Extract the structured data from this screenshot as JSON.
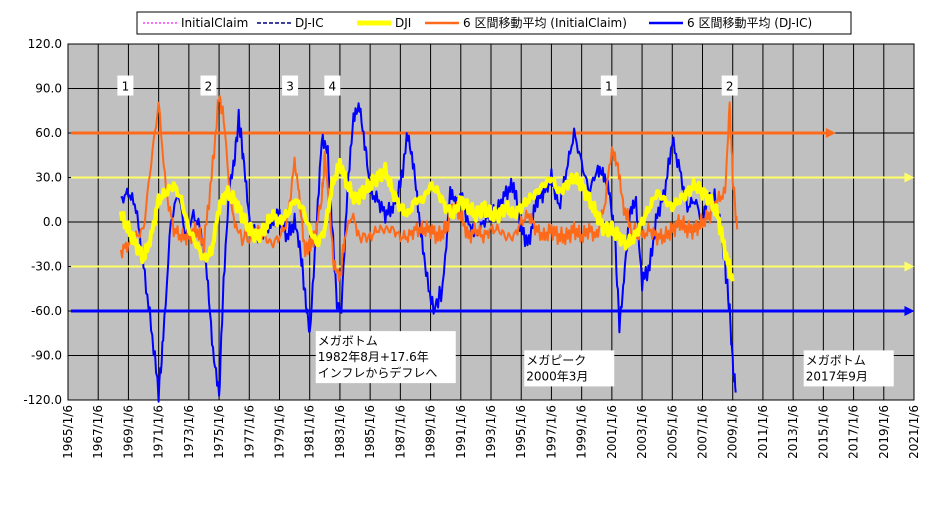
{
  "chart_data": {
    "type": "line",
    "ylim": [
      -120,
      120
    ],
    "y_ticks": [
      "120.0",
      "90.0",
      "60.0",
      "30.0",
      "0.0",
      "-30.0",
      "-60.0",
      "-90.0",
      "-120.0"
    ],
    "x_range": [
      1965,
      2021
    ],
    "x_ticks": [
      "1965/1/6",
      "1967/1/6",
      "1969/1/6",
      "1971/1/6",
      "1973/1/6",
      "1975/1/6",
      "1977/1/6",
      "1979/1/6",
      "1981/1/6",
      "1983/1/6",
      "1985/1/6",
      "1987/1/6",
      "1989/1/6",
      "1991/1/6",
      "1993/1/6",
      "1995/1/6",
      "1997/1/6",
      "1999/1/6",
      "2001/1/6",
      "2003/1/6",
      "2005/1/6",
      "2007/1/6",
      "2009/1/6",
      "2011/1/6",
      "2013/1/6",
      "2015/1/6",
      "2017/1/6",
      "2019/1/6",
      "2021/1/6"
    ],
    "legend": [
      {
        "name": "InitialClaim",
        "color": "#ff40ff",
        "style": "dotted"
      },
      {
        "name": "DJ-IC",
        "color": "#000080",
        "style": "dashed"
      },
      {
        "name": "DJI",
        "color": "#ffff00",
        "style": "thick"
      },
      {
        "name": "6 区間移動平均 (InitialClaim)",
        "color": "#ff6a1a",
        "style": "solid"
      },
      {
        "name": "6 区間移動平均 (DJ-IC)",
        "color": "#0000ff",
        "style": "solid"
      }
    ],
    "series": [
      {
        "name": "6 区間移動平均 (DJ-IC)",
        "color": "#0000ff",
        "x": [
          1968.5,
          1969,
          1969.5,
          1970,
          1970.5,
          1971,
          1971.3,
          1971.8,
          1972.3,
          1972.8,
          1973.3,
          1973.8,
          1974.2,
          1974.6,
          1975,
          1975.3,
          1975.7,
          1976,
          1976.3,
          1976.6,
          1977,
          1977.5,
          1978,
          1978.5,
          1979,
          1979.5,
          1980,
          1980.4,
          1980.7,
          1981,
          1981.4,
          1981.8,
          1982.2,
          1982.5,
          1982.8,
          1983.1,
          1983.5,
          1983.9,
          1984.3,
          1984.7,
          1985,
          1985.5,
          1986,
          1986.5,
          1987,
          1987.5,
          1987.9,
          1988.3,
          1988.7,
          1989.2,
          1989.8,
          1990.3,
          1990.7,
          1991.1,
          1991.6,
          1992,
          1992.5,
          1993,
          1993.5,
          1994,
          1994.5,
          1995,
          1995.5,
          1996,
          1996.5,
          1997,
          1997.5,
          1998,
          1998.5,
          1999,
          1999.5,
          2000,
          2000.4,
          2000.8,
          2001.2,
          2001.5,
          2001.8,
          2002.2,
          2002.6,
          2003,
          2003.5,
          2004,
          2004.5,
          2005,
          2005.5,
          2006,
          2006.5,
          2007,
          2007.4,
          2007.8,
          2008.2,
          2008.5,
          2008.8,
          2009,
          2009.2
        ],
        "y": [
          15,
          20,
          10,
          -30,
          -70,
          -115,
          -80,
          0,
          20,
          -10,
          5,
          -5,
          -35,
          -90,
          -118,
          -40,
          25,
          40,
          70,
          45,
          0,
          -10,
          -5,
          0,
          5,
          -10,
          0,
          -20,
          -50,
          -75,
          -10,
          55,
          45,
          -5,
          -55,
          -60,
          20,
          70,
          80,
          50,
          20,
          15,
          5,
          10,
          25,
          60,
          35,
          -5,
          -35,
          -60,
          -45,
          20,
          10,
          15,
          -5,
          -10,
          0,
          5,
          10,
          20,
          25,
          -5,
          -15,
          15,
          20,
          30,
          10,
          35,
          60,
          40,
          20,
          35,
          35,
          25,
          -10,
          -70,
          -40,
          5,
          15,
          -40,
          -30,
          5,
          20,
          55,
          35,
          10,
          15,
          0,
          15,
          20,
          0,
          -30,
          -60,
          -95,
          -115
        ]
      },
      {
        "name": "6 区間移動平均 (InitialClaim)",
        "color": "#ff6a1a",
        "x": [
          1968.5,
          1969,
          1969.5,
          1970,
          1970.5,
          1971,
          1971.5,
          1972,
          1972.5,
          1973,
          1973.5,
          1974,
          1974.5,
          1975,
          1975.3,
          1975.8,
          1976.3,
          1977,
          1977.5,
          1978,
          1978.5,
          1979,
          1979.5,
          1980,
          1980.3,
          1980.7,
          1981,
          1981.3,
          1981.8,
          1982,
          1982.3,
          1982.6,
          1983,
          1983.3,
          1983.8,
          1984.3,
          1985,
          1985.5,
          1986,
          1986.5,
          1987,
          1987.5,
          1988,
          1988.5,
          1989,
          1989.5,
          1990,
          1990.5,
          1991,
          1991.5,
          1992,
          1992.5,
          1993,
          1993.5,
          1994,
          1994.5,
          1995,
          1995.5,
          1996,
          1996.5,
          1997,
          1997.5,
          1998,
          1998.5,
          1999,
          1999.5,
          2000,
          2000.5,
          2001,
          2001.4,
          2001.8,
          2002.3,
          2003,
          2003.5,
          2004,
          2004.5,
          2005,
          2005.5,
          2006,
          2006.5,
          2007,
          2007.5,
          2008,
          2008.5,
          2008.8,
          2009,
          2009.3
        ],
        "y": [
          -20,
          -15,
          -10,
          -5,
          40,
          80,
          20,
          -5,
          -10,
          -10,
          -5,
          -15,
          30,
          85,
          70,
          10,
          -10,
          -10,
          -5,
          -10,
          -15,
          -10,
          0,
          40,
          20,
          -20,
          -15,
          -10,
          15,
          45,
          10,
          -30,
          -40,
          -10,
          5,
          -10,
          -10,
          -5,
          -5,
          -5,
          -10,
          -10,
          -5,
          -5,
          -5,
          -10,
          -5,
          10,
          5,
          -10,
          -5,
          -10,
          -5,
          -5,
          -10,
          -10,
          0,
          5,
          -5,
          -10,
          -5,
          -10,
          -10,
          -5,
          -10,
          -5,
          -10,
          10,
          50,
          40,
          10,
          -5,
          -10,
          -5,
          -10,
          -10,
          -5,
          0,
          -5,
          -5,
          0,
          5,
          15,
          20,
          80,
          30,
          -5
        ]
      },
      {
        "name": "DJI",
        "color": "#ffff00",
        "x": [
          1968.5,
          1969,
          1969.5,
          1970,
          1970.5,
          1971,
          1971.5,
          1972,
          1972.5,
          1973,
          1973.5,
          1974,
          1974.5,
          1975,
          1975.5,
          1976,
          1976.5,
          1977,
          1977.5,
          1978,
          1978.5,
          1979,
          1979.5,
          1980,
          1980.5,
          1981,
          1981.5,
          1982,
          1982.5,
          1983,
          1983.5,
          1984,
          1984.5,
          1985,
          1985.5,
          1986,
          1986.5,
          1987,
          1987.5,
          1988,
          1988.5,
          1989,
          1989.5,
          1990,
          1990.5,
          1991,
          1991.5,
          1992,
          1992.5,
          1993,
          1993.5,
          1994,
          1994.5,
          1995,
          1995.5,
          1996,
          1996.5,
          1997,
          1997.5,
          1998,
          1998.5,
          1999,
          1999.5,
          2000,
          2000.5,
          2001,
          2001.5,
          2002,
          2002.5,
          2003,
          2003.5,
          2004,
          2004.5,
          2005,
          2005.5,
          2006,
          2006.5,
          2007,
          2007.5,
          2008,
          2008.5,
          2009
        ],
        "y": [
          5,
          -5,
          -15,
          -25,
          -10,
          15,
          20,
          25,
          15,
          -5,
          -15,
          -25,
          -20,
          10,
          20,
          15,
          5,
          -5,
          -10,
          -5,
          5,
          0,
          5,
          15,
          10,
          -5,
          -15,
          -5,
          25,
          40,
          25,
          15,
          20,
          25,
          30,
          35,
          20,
          10,
          5,
          15,
          15,
          25,
          20,
          10,
          5,
          15,
          10,
          5,
          10,
          5,
          5,
          10,
          5,
          10,
          15,
          20,
          25,
          30,
          20,
          25,
          30,
          25,
          15,
          5,
          -5,
          -5,
          -10,
          -15,
          -10,
          0,
          10,
          20,
          15,
          10,
          15,
          20,
          25,
          20,
          15,
          5,
          -20,
          -40
        ]
      }
    ],
    "horizontal_lines": [
      {
        "y": 60,
        "x_start": 1965.2,
        "x_end": 2015.3,
        "color": "#ff6a1a",
        "arrow": true
      },
      {
        "y": 30,
        "x_start": 1965.2,
        "x_end": 2020.5,
        "color": "#ffff66",
        "arrow": true
      },
      {
        "y": -30,
        "x_start": 1965.2,
        "x_end": 2020.5,
        "color": "#ffff66",
        "arrow": true
      },
      {
        "y": -60,
        "x_start": 1965.2,
        "x_end": 2020.5,
        "color": "#0000ff",
        "arrow": true
      }
    ],
    "markers": [
      {
        "text": "1",
        "x": 1968.8,
        "y": 92
      },
      {
        "text": "2",
        "x": 1974.3,
        "y": 92
      },
      {
        "text": "3",
        "x": 1979.7,
        "y": 92
      },
      {
        "text": "4",
        "x": 1982.5,
        "y": 92
      },
      {
        "text": "1",
        "x": 2000.8,
        "y": 92
      },
      {
        "text": "2",
        "x": 2008.8,
        "y": 92
      }
    ],
    "annotations": [
      {
        "lines": [
          "メガボトム",
          "1982年8月+17.6年",
          "インフレからデフレへ"
        ],
        "x": 1981.4,
        "y": -83
      },
      {
        "lines": [
          "メガピーク",
          "2000年3月"
        ],
        "x": 1995.2,
        "y": -96
      },
      {
        "lines": [
          "メガボトム",
          "2017年9月"
        ],
        "x": 2013.7,
        "y": -96
      }
    ]
  }
}
